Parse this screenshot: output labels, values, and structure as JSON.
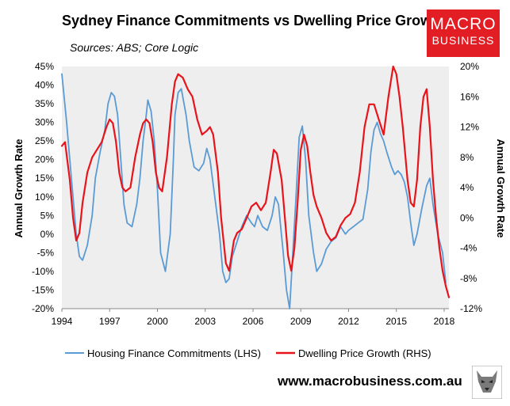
{
  "header": {
    "title": "Sydney Finance Commitments vs Dwelling Price Growth",
    "subtitle": "Sources: ABS; Core Logic"
  },
  "logo": {
    "line1": "MACRO",
    "line2": "BUSINESS"
  },
  "footer": {
    "url": "www.macrobusiness.com.au",
    "icon": "wolf-icon"
  },
  "colors": {
    "plot_background": "#eeeeee",
    "lhs_series": "#5b9bd5",
    "rhs_series": "#e8141b",
    "brand": "#e21d24"
  },
  "chart_data": {
    "type": "line",
    "title": "Sydney Finance Commitments vs Dwelling Price Growth",
    "xlabel": "",
    "ylabel_left": "Annual Growth Rate",
    "ylabel_right": "Annual Growth Rate",
    "xlim": [
      1994.0,
      2018.3
    ],
    "ylim_left": [
      -20,
      45
    ],
    "ylim_right": [
      -12,
      20
    ],
    "x_ticks": [
      1994,
      1997,
      2000,
      2003,
      2006,
      2009,
      2012,
      2015,
      2018
    ],
    "x_tick_labels": [
      "1994",
      "1997",
      "2000",
      "2003",
      "2006",
      "2009",
      "2012",
      "2015",
      "2018"
    ],
    "y_left_ticks": [
      45,
      40,
      35,
      30,
      25,
      20,
      15,
      10,
      5,
      0,
      -5,
      -10,
      -15,
      -20
    ],
    "y_left_tick_labels": [
      "45%",
      "40%",
      "35%",
      "30%",
      "25%",
      "20%",
      "15%",
      "10%",
      "5%",
      "0%",
      "-5%",
      "-10%",
      "-15%",
      "-20%"
    ],
    "y_right_ticks": [
      20,
      16,
      12,
      8,
      4,
      0,
      -4,
      -8,
      -12
    ],
    "y_right_tick_labels": [
      "20%",
      "16%",
      "12%",
      "8%",
      "4%",
      "0%",
      "-4%",
      "-8%",
      "-12%"
    ],
    "grid": false,
    "legend_position": "bottom",
    "series": [
      {
        "name": "Housing Finance Commitments (LHS)",
        "axis": "left",
        "x": [
          1994.0,
          1994.3,
          1994.6,
          1994.9,
          1995.1,
          1995.3,
          1995.6,
          1995.9,
          1996.1,
          1996.4,
          1996.7,
          1996.9,
          1997.1,
          1997.3,
          1997.5,
          1997.7,
          1997.9,
          1998.1,
          1998.4,
          1998.7,
          1998.9,
          1999.1,
          1999.3,
          1999.4,
          1999.6,
          1999.8,
          2000.0,
          2000.2,
          2000.5,
          2000.8,
          2001.0,
          2001.1,
          2001.3,
          2001.5,
          2001.8,
          2002.0,
          2002.3,
          2002.6,
          2002.9,
          2003.1,
          2003.3,
          2003.6,
          2003.9,
          2004.1,
          2004.3,
          2004.5,
          2004.7,
          2005.0,
          2005.3,
          2005.6,
          2005.9,
          2006.1,
          2006.3,
          2006.6,
          2006.9,
          2007.2,
          2007.4,
          2007.6,
          2007.9,
          2008.1,
          2008.3,
          2008.5,
          2008.7,
          2008.9,
          2009.1,
          2009.3,
          2009.5,
          2009.8,
          2010.0,
          2010.3,
          2010.6,
          2010.9,
          2011.2,
          2011.5,
          2011.8,
          2012.0,
          2012.3,
          2012.6,
          2012.9,
          2013.2,
          2013.4,
          2013.6,
          2013.8,
          2014.0,
          2014.2,
          2014.4,
          2014.7,
          2014.9,
          2015.1,
          2015.3,
          2015.5,
          2015.7,
          2015.9,
          2016.1,
          2016.3,
          2016.6,
          2016.9,
          2017.1,
          2017.3,
          2017.6,
          2017.9,
          2018.1
        ],
        "values": [
          43,
          30,
          15,
          0,
          -6,
          -7,
          -3,
          5,
          15,
          22,
          28,
          35,
          38,
          37,
          32,
          20,
          8,
          3,
          2,
          8,
          15,
          25,
          32,
          36,
          33,
          25,
          12,
          -5,
          -10,
          0,
          20,
          32,
          38,
          39,
          32,
          25,
          18,
          17,
          19,
          23,
          20,
          10,
          0,
          -10,
          -13,
          -12,
          -6,
          -2,
          2,
          5,
          3,
          2,
          5,
          2,
          1,
          5,
          10,
          8,
          -5,
          -15,
          -20,
          -5,
          10,
          26,
          29,
          20,
          5,
          -5,
          -10,
          -8,
          -4,
          -2,
          -1,
          2,
          0,
          1,
          2,
          3,
          4,
          12,
          22,
          28,
          30,
          27,
          25,
          22,
          18,
          16,
          17,
          16,
          14,
          10,
          3,
          -3,
          0,
          7,
          13,
          15,
          8,
          0,
          -5,
          -13
        ]
      },
      {
        "name": "Dwelling Price Growth (RHS)",
        "axis": "right",
        "x": [
          1994.0,
          1994.2,
          1994.5,
          1994.7,
          1994.9,
          1995.1,
          1995.3,
          1995.6,
          1995.9,
          1996.2,
          1996.5,
          1996.8,
          1997.0,
          1997.2,
          1997.4,
          1997.6,
          1997.8,
          1998.0,
          1998.3,
          1998.6,
          1998.9,
          1999.1,
          1999.3,
          1999.5,
          1999.7,
          1999.9,
          2000.1,
          2000.3,
          2000.6,
          2000.9,
          2001.1,
          2001.3,
          2001.6,
          2001.9,
          2002.2,
          2002.5,
          2002.8,
          2003.1,
          2003.3,
          2003.5,
          2003.8,
          2004.0,
          2004.3,
          2004.5,
          2004.8,
          2005.0,
          2005.3,
          2005.6,
          2005.9,
          2006.2,
          2006.5,
          2006.8,
          2007.1,
          2007.3,
          2007.5,
          2007.8,
          2008.0,
          2008.2,
          2008.4,
          2008.6,
          2008.8,
          2009.0,
          2009.2,
          2009.4,
          2009.6,
          2009.8,
          2010.0,
          2010.3,
          2010.6,
          2010.9,
          2011.2,
          2011.5,
          2011.8,
          2012.1,
          2012.4,
          2012.7,
          2013.0,
          2013.3,
          2013.6,
          2013.9,
          2014.2,
          2014.5,
          2014.8,
          2015.0,
          2015.2,
          2015.4,
          2015.7,
          2015.9,
          2016.1,
          2016.3,
          2016.5,
          2016.7,
          2016.9,
          2017.1,
          2017.3,
          2017.5,
          2017.7,
          2017.9,
          2018.1,
          2018.3
        ],
        "values": [
          9.5,
          10,
          5,
          0,
          -3,
          -2,
          2,
          6,
          8,
          9,
          10,
          12,
          13,
          12.5,
          10,
          6,
          4,
          3.5,
          4,
          8,
          11,
          12.5,
          13,
          12.5,
          10,
          6,
          4,
          3.5,
          8,
          15,
          18,
          19,
          18.5,
          17,
          16,
          13,
          11,
          11.5,
          12,
          11,
          6,
          0,
          -6,
          -7,
          -3,
          -2,
          -1.5,
          0,
          1.5,
          2,
          1,
          2,
          6,
          9,
          8.5,
          5,
          0,
          -5,
          -7,
          -4,
          2,
          9,
          11,
          9.5,
          6,
          3,
          1.5,
          0,
          -2,
          -3,
          -2.5,
          -1,
          0,
          0.5,
          2,
          6,
          12,
          15,
          15,
          13,
          11,
          16,
          20,
          19,
          16,
          12,
          5,
          2,
          1.5,
          5,
          12,
          16,
          17,
          12,
          5,
          0,
          -4,
          -7,
          -9,
          -10.5
        ]
      }
    ]
  }
}
